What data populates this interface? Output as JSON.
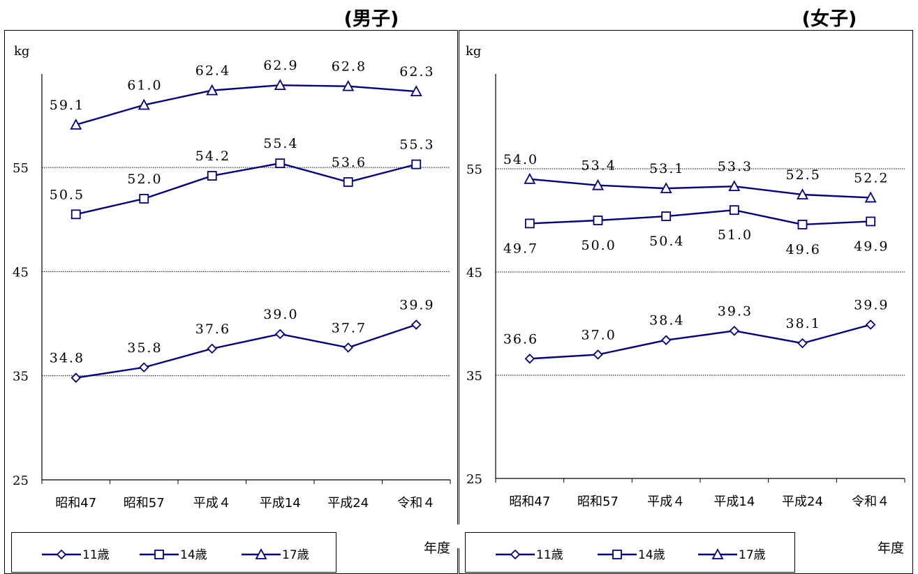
{
  "chart_data": [
    {
      "type": "line",
      "title": "(男子)",
      "ylabel": "kg",
      "xlabel": "年度",
      "ylim": [
        25,
        66
      ],
      "yticks": [
        25,
        35,
        45,
        55
      ],
      "categories": [
        "昭和47",
        "昭和57",
        "平成４",
        "平成14",
        "平成24",
        "令和４"
      ],
      "series": [
        {
          "name": "11歳",
          "marker": "diamond",
          "values": [
            34.8,
            35.8,
            37.6,
            39.0,
            37.7,
            39.9
          ],
          "labels": [
            "34.8",
            "35.8",
            "37.6",
            "39.0",
            "37.7",
            "39.9"
          ]
        },
        {
          "name": "14歳",
          "marker": "square",
          "values": [
            50.5,
            52.0,
            54.2,
            55.4,
            53.6,
            55.3
          ],
          "labels": [
            "50.5",
            "52.0",
            "54.2",
            "55.4",
            "53.6",
            "55.3"
          ]
        },
        {
          "name": "17歳",
          "marker": "triangle",
          "values": [
            59.1,
            61.0,
            62.4,
            62.9,
            62.8,
            62.3
          ],
          "labels": [
            "59.1",
            "61.0",
            "62.4",
            "62.9",
            "62.8",
            "62.3"
          ]
        }
      ]
    },
    {
      "type": "line",
      "title": "(女子)",
      "ylabel": "kg",
      "xlabel": "年度",
      "ylim": [
        25,
        65
      ],
      "yticks": [
        25,
        35,
        45,
        55
      ],
      "categories": [
        "昭和47",
        "昭和57",
        "平成４",
        "平成14",
        "平成24",
        "令和４"
      ],
      "series": [
        {
          "name": "11歳",
          "marker": "diamond",
          "values": [
            36.6,
            37.0,
            38.4,
            39.3,
            38.1,
            39.9
          ],
          "labels": [
            "36.6",
            "37.0",
            "38.4",
            "39.3",
            "38.1",
            "39.9"
          ]
        },
        {
          "name": "14歳",
          "marker": "square",
          "values": [
            49.7,
            50.0,
            50.4,
            51.0,
            49.6,
            49.9
          ],
          "labels": [
            "49.7",
            "50.0",
            "50.4",
            "51.0",
            "49.6",
            "49.9"
          ]
        },
        {
          "name": "17歳",
          "marker": "triangle",
          "values": [
            54.0,
            53.4,
            53.1,
            53.3,
            52.5,
            52.2
          ],
          "labels": [
            "54.0",
            "53.4",
            "53.1",
            "53.3",
            "52.5",
            "52.2"
          ]
        }
      ]
    }
  ],
  "colors": {
    "series": "#000080",
    "grid": "#000000",
    "axis": "#000000"
  }
}
